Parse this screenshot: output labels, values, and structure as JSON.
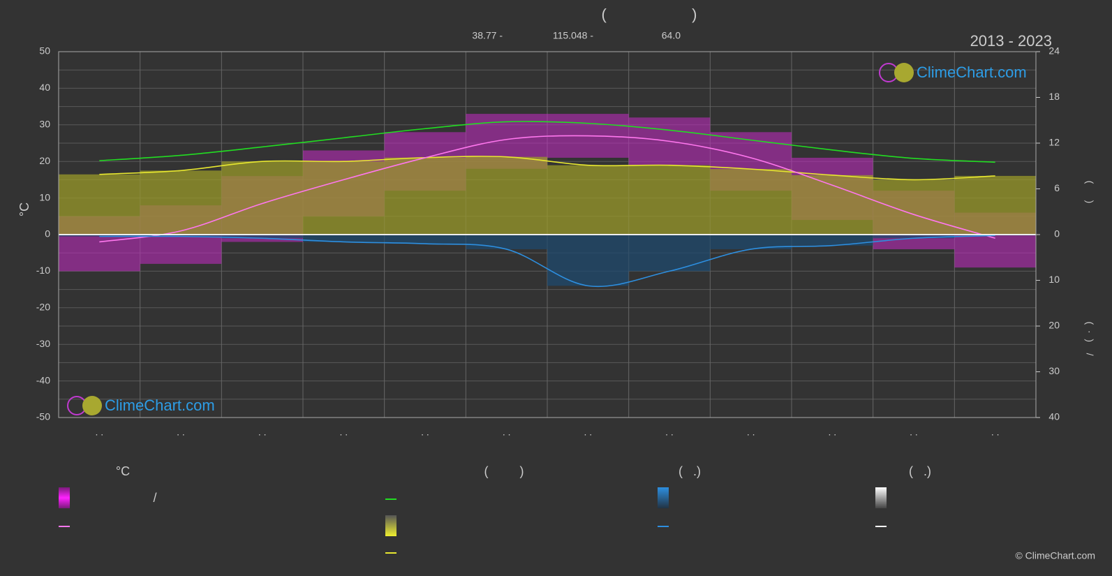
{
  "chart_data": {
    "type": "line",
    "title": "(                    )",
    "coordinates": [
      "38.77 -",
      "115.048 -",
      "64.0"
    ],
    "period": "2013 - 2023",
    "watermark": "ClimeChart.com",
    "ylabel": "°C",
    "y2label": "(      )",
    "y3label": "(  ·  )    /",
    "categories": [
      ". .",
      ". .",
      ". .",
      ". .",
      ". .",
      ". .",
      ". .",
      ". .",
      ". .",
      ". .",
      ". .",
      ". ."
    ],
    "ylim": [
      -50,
      50
    ],
    "yticks": [
      -50,
      -40,
      -30,
      -20,
      -10,
      0,
      10,
      20,
      30,
      40,
      50
    ],
    "y2lim": [
      0,
      24
    ],
    "y2ticks": [
      0,
      6,
      12,
      18,
      24
    ],
    "y3lim": [
      0,
      40
    ],
    "y3ticks": [
      0,
      10,
      20,
      30,
      40
    ],
    "grid": true,
    "series": [
      {
        "color": "#22dd22",
        "axis": "y2",
        "values": [
          9.7,
          10.4,
          11.5,
          12.7,
          13.9,
          14.8,
          14.6,
          13.7,
          12.4,
          11.1,
          10.0,
          9.5
        ]
      },
      {
        "color": "#e8e830",
        "axis": "y2",
        "fill": "#9a9a2a",
        "values": [
          7.9,
          8.4,
          9.6,
          9.6,
          10.1,
          10.2,
          9.1,
          9.1,
          8.6,
          7.8,
          7.2,
          7.7
        ]
      },
      {
        "color": "#ff77ee",
        "axis": "y",
        "values": [
          -2,
          1,
          8.5,
          15,
          21,
          26,
          27,
          25.5,
          21,
          13.5,
          5.5,
          -1
        ]
      },
      {
        "color": "#2d8fe0",
        "axis": "y3",
        "fill": "#1f4a6e",
        "values": [
          0.4,
          0.4,
          0.8,
          1.6,
          2,
          3.2,
          11.2,
          8,
          3.2,
          2.4,
          0.8,
          0.2
        ]
      }
    ],
    "temperature_range": {
      "color": "#c42ac4",
      "low": [
        -10,
        -8,
        -2,
        5,
        12,
        18,
        21,
        19,
        12,
        4,
        -4,
        -9
      ],
      "high": [
        5,
        8,
        16,
        23,
        28,
        33,
        33,
        32,
        28,
        21,
        12,
        6
      ]
    },
    "legend": {
      "headers": [
        "°C",
        "(         )",
        "(   .)",
        "(   .)"
      ],
      "texts": [
        "/"
      ]
    },
    "copyright": "© ClimeChart.com"
  }
}
